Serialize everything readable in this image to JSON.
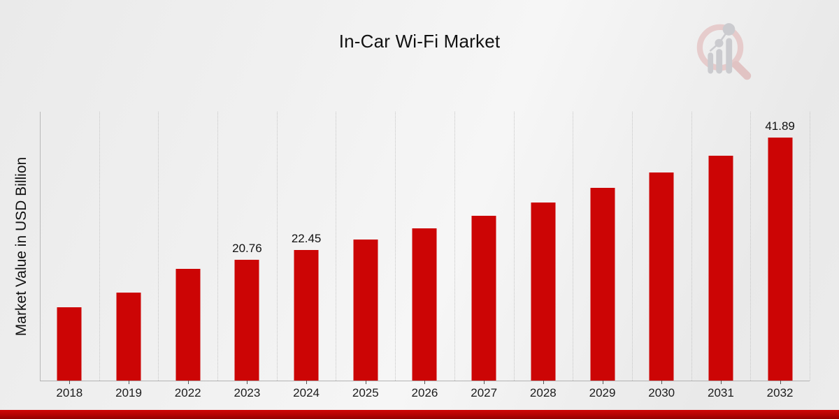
{
  "title": "In-Car Wi-Fi Market",
  "watermark_name": "market-research-future-logo",
  "y_axis_label": "Market Value in USD Billion",
  "colors": {
    "bar": "#cc0505",
    "axis_line": "#b3b3b3",
    "gridline": "#c6c6c6",
    "strip_top": "#cf0808",
    "strip_bottom": "#950101",
    "text": "#111111"
  },
  "chart_data": {
    "type": "bar",
    "title": "In-Car Wi-Fi Market",
    "xlabel": "",
    "ylabel": "Market Value in USD Billion",
    "categories": [
      "2018",
      "2019",
      "2022",
      "2023",
      "2024",
      "2025",
      "2026",
      "2027",
      "2028",
      "2029",
      "2030",
      "2031",
      "2032"
    ],
    "values": [
      12.6,
      15.2,
      19.2,
      20.76,
      22.45,
      24.27,
      26.24,
      28.37,
      30.67,
      33.16,
      35.85,
      38.75,
      41.89
    ],
    "data_labels": [
      "",
      "",
      "",
      "20.76",
      "22.45",
      "",
      "",
      "",
      "",
      "",
      "",
      "",
      "41.89"
    ],
    "ylim": [
      0,
      46.3
    ],
    "grid": "vertical-dotted",
    "legend": "none",
    "bar_color": "#cc0505"
  }
}
